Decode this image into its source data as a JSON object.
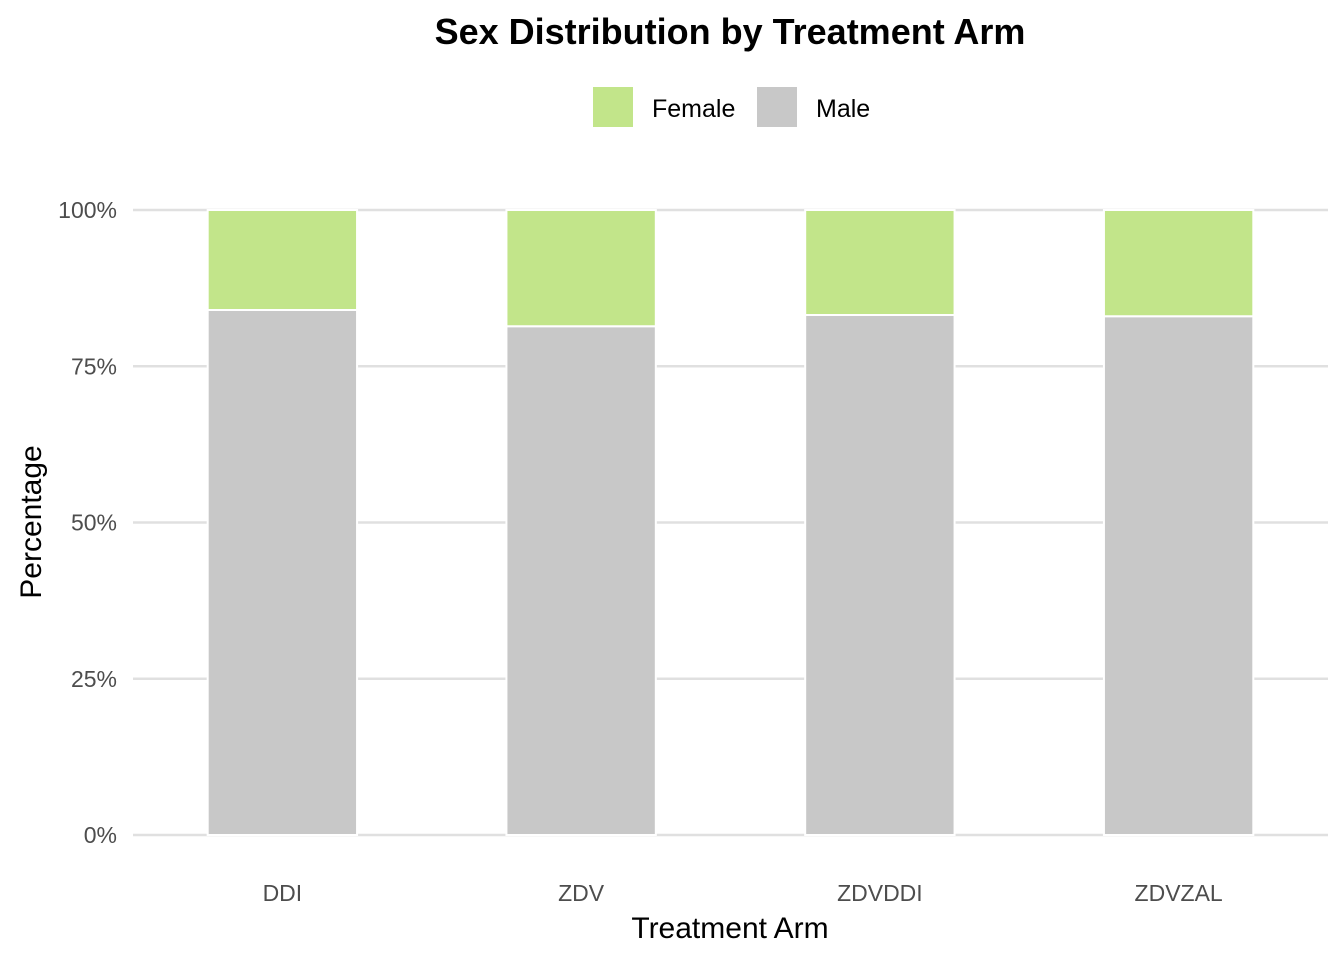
{
  "chart_data": {
    "type": "bar",
    "stacked": true,
    "title": "Sex Distribution by Treatment Arm",
    "xlabel": "Treatment Arm",
    "ylabel": "Percentage",
    "categories": [
      "DDI",
      "ZDV",
      "ZDVDDI",
      "ZDVZAL"
    ],
    "series": [
      {
        "name": "Male",
        "color": "#C8C8C8",
        "values": [
          84.0,
          81.4,
          83.2,
          83.0
        ]
      },
      {
        "name": "Female",
        "color": "#C2E58A",
        "values": [
          16.0,
          18.6,
          16.8,
          17.0
        ]
      }
    ],
    "legend": {
      "position": "top",
      "entries": [
        "Female",
        "Male"
      ]
    },
    "yticks": [
      "0%",
      "25%",
      "50%",
      "75%",
      "100%"
    ],
    "ylim": [
      0,
      100
    ],
    "grid": "horizontal"
  }
}
